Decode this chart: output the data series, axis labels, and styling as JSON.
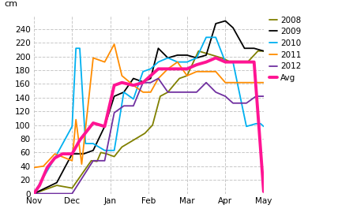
{
  "ylabel": "cm",
  "x_labels": [
    "Nov",
    "Dec",
    "Jan",
    "Feb",
    "Mar",
    "Apr",
    "May"
  ],
  "series_order": [
    "2008",
    "2009",
    "2010",
    "2011",
    "2012",
    "Avg"
  ],
  "series": {
    "2008": {
      "color": "#808000",
      "lw": 1.3,
      "x": [
        0,
        0.6,
        1.0,
        1.5,
        1.65,
        1.75,
        1.9,
        2.1,
        2.3,
        2.6,
        2.9,
        3.1,
        3.3,
        3.5,
        3.8,
        4.0,
        4.3,
        4.6,
        4.9,
        5.1,
        5.3,
        5.6,
        5.85,
        6.0
      ],
      "y": [
        0,
        12,
        8,
        48,
        47,
        60,
        58,
        54,
        68,
        78,
        88,
        100,
        142,
        148,
        168,
        172,
        208,
        203,
        198,
        193,
        193,
        193,
        208,
        208
      ]
    },
    "2009": {
      "color": "#000000",
      "lw": 1.3,
      "x": [
        0,
        0.6,
        1.0,
        1.3,
        1.55,
        1.85,
        2.1,
        2.35,
        2.6,
        2.85,
        3.05,
        3.25,
        3.5,
        3.75,
        4.0,
        4.25,
        4.5,
        4.75,
        5.0,
        5.2,
        5.5,
        5.75,
        6.0
      ],
      "y": [
        0,
        16,
        58,
        58,
        63,
        98,
        142,
        148,
        168,
        163,
        168,
        212,
        198,
        202,
        202,
        198,
        202,
        248,
        252,
        242,
        212,
        212,
        208
      ]
    },
    "2010": {
      "color": "#00b0f0",
      "lw": 1.3,
      "x": [
        0,
        0.55,
        1.0,
        1.1,
        1.2,
        1.35,
        1.55,
        1.85,
        2.1,
        2.35,
        2.6,
        2.85,
        3.05,
        3.25,
        3.5,
        3.75,
        4.0,
        4.25,
        4.5,
        4.75,
        5.0,
        5.2,
        5.55,
        5.8,
        5.92,
        6.0
      ],
      "y": [
        0,
        52,
        98,
        212,
        212,
        73,
        73,
        63,
        63,
        148,
        138,
        178,
        182,
        192,
        198,
        192,
        192,
        198,
        228,
        228,
        192,
        192,
        98,
        102,
        102,
        98
      ]
    },
    "2011": {
      "color": "#ff8c00",
      "lw": 1.3,
      "x": [
        0,
        0.25,
        0.55,
        1.0,
        1.1,
        1.25,
        1.55,
        1.85,
        2.1,
        2.3,
        2.6,
        2.85,
        3.05,
        3.25,
        3.5,
        3.75,
        4.0,
        4.25,
        4.5,
        4.75,
        5.0,
        5.5,
        5.75,
        6.0
      ],
      "y": [
        38,
        40,
        58,
        48,
        108,
        43,
        198,
        192,
        218,
        172,
        158,
        148,
        148,
        168,
        182,
        192,
        172,
        178,
        178,
        178,
        162,
        162,
        162,
        162
      ]
    },
    "2012": {
      "color": "#7030a0",
      "lw": 1.3,
      "x": [
        0,
        0.55,
        1.0,
        1.55,
        1.85,
        2.1,
        2.35,
        2.6,
        2.85,
        3.05,
        3.25,
        3.5,
        3.75,
        4.0,
        4.25,
        4.5,
        4.75,
        5.0,
        5.2,
        5.55,
        5.8,
        6.0
      ],
      "y": [
        0,
        0,
        0,
        48,
        48,
        118,
        128,
        128,
        162,
        162,
        168,
        148,
        148,
        148,
        148,
        162,
        148,
        142,
        132,
        132,
        142,
        142
      ]
    },
    "Avg": {
      "color": "#ff1493",
      "lw": 2.8,
      "x": [
        0,
        0.15,
        0.35,
        0.55,
        0.75,
        1.0,
        1.2,
        1.55,
        1.85,
        2.1,
        2.3,
        2.6,
        2.85,
        3.05,
        3.25,
        3.5,
        3.75,
        4.0,
        4.25,
        4.5,
        4.75,
        5.0,
        5.2,
        5.55,
        5.75,
        5.88,
        6.0
      ],
      "y": [
        0,
        12,
        38,
        52,
        58,
        58,
        78,
        103,
        98,
        158,
        162,
        158,
        162,
        172,
        182,
        182,
        182,
        182,
        188,
        192,
        198,
        192,
        192,
        192,
        192,
        95,
        3
      ]
    }
  },
  "ylim": [
    0,
    260
  ],
  "yticks": [
    0,
    20,
    40,
    60,
    80,
    100,
    120,
    140,
    160,
    180,
    200,
    220,
    240
  ],
  "xtick_positions": [
    0,
    1,
    2,
    3,
    4,
    5,
    6
  ],
  "background_color": "#ffffff",
  "grid_color": "#c8c8c8"
}
